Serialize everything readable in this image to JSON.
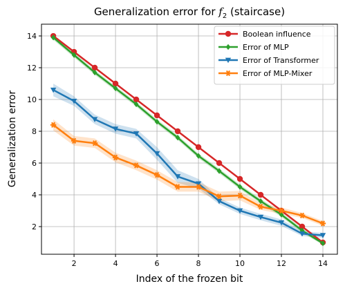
{
  "chart_data": {
    "type": "line",
    "title": [
      "Generalization error for ",
      "f",
      "2",
      " (staircase)"
    ],
    "xlabel": "Index of the frozen bit",
    "ylabel": "Generalization error",
    "x": [
      1,
      2,
      3,
      4,
      5,
      6,
      7,
      8,
      9,
      10,
      11,
      12,
      13,
      14
    ],
    "series": [
      {
        "name": "Boolean influence",
        "color": "#d62728",
        "marker": "circle",
        "values": [
          14,
          13,
          12,
          11,
          10,
          9,
          8,
          7,
          6,
          5,
          4,
          3,
          2,
          1
        ]
      },
      {
        "name": "Error of MLP",
        "color": "#2ca02c",
        "marker": "diamond",
        "values": [
          13.9,
          12.8,
          11.7,
          10.7,
          9.7,
          8.6,
          7.6,
          6.45,
          5.5,
          4.5,
          3.6,
          2.75,
          1.75,
          0.95
        ],
        "errors": [
          0.15,
          0.15,
          0.15,
          0.15,
          0.15,
          0.15,
          0.15,
          0.15,
          0.15,
          0.15,
          0.15,
          0.15,
          0.15,
          0.1
        ]
      },
      {
        "name": "Error of Transformer",
        "color": "#1f77b4",
        "marker": "triangle-down",
        "values": [
          10.6,
          9.9,
          8.75,
          8.15,
          7.85,
          6.6,
          5.15,
          4.7,
          3.6,
          3.0,
          2.6,
          2.25,
          1.55,
          1.45
        ],
        "errors": [
          0.4,
          0.3,
          0.3,
          0.3,
          0.3,
          0.4,
          0.4,
          0.3,
          0.2,
          0.2,
          0.2,
          0.2,
          0.15,
          0.15
        ]
      },
      {
        "name": "Error of MLP-Mixer",
        "color": "#ff7f0e",
        "marker": "x-star",
        "values": [
          8.4,
          7.4,
          7.25,
          6.35,
          5.85,
          5.25,
          4.5,
          4.5,
          3.9,
          3.95,
          3.25,
          3.0,
          2.7,
          2.2
        ],
        "errors": [
          0.35,
          0.3,
          0.3,
          0.3,
          0.3,
          0.3,
          0.3,
          0.3,
          0.3,
          0.3,
          0.2,
          0.2,
          0.15,
          0.15
        ]
      }
    ],
    "xlim": [
      0.43,
      14.7
    ],
    "ylim": [
      0.26,
      14.74
    ],
    "xticks": [
      2,
      4,
      6,
      8,
      10,
      12,
      14
    ],
    "yticks": [
      2,
      4,
      6,
      8,
      10,
      12,
      14
    ],
    "grid": true,
    "legend": "upper right"
  }
}
